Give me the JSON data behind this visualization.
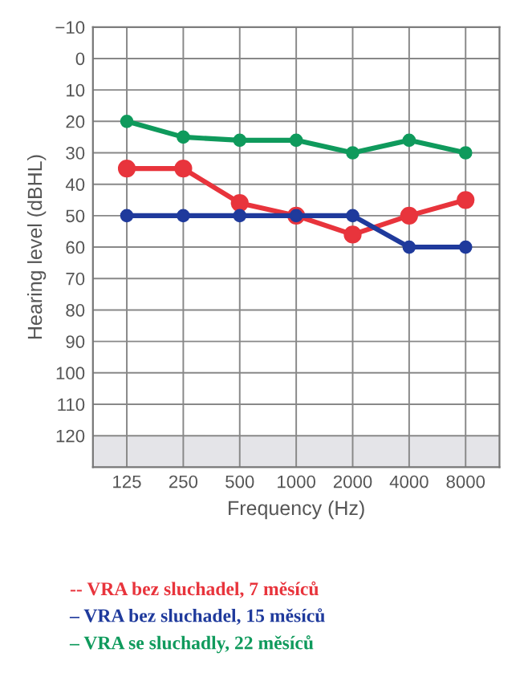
{
  "chart_data": {
    "type": "line",
    "xlabel": "Frequency (Hz)",
    "ylabel": "Hearing level (dBHL)",
    "categories": [
      "125",
      "250",
      "500",
      "1000",
      "2000",
      "4000",
      "8000"
    ],
    "series": [
      {
        "name": "-- VRA bez sluchadel, 7 měsíců",
        "color": "#e8343c",
        "values": [
          35,
          35,
          46,
          50,
          56,
          50,
          45
        ]
      },
      {
        "name": "– VRA bez sluchadel, 15 měsíců",
        "color": "#1f3a9c",
        "values": [
          50,
          50,
          50,
          50,
          50,
          60,
          60
        ]
      },
      {
        "name": "– VRA se sluchadly, 22 měsíců",
        "color": "#0f9a5c",
        "values": [
          20,
          25,
          26,
          26,
          30,
          26,
          30
        ]
      }
    ],
    "ylim": [
      130,
      -10
    ],
    "yticks": [
      {
        "value": -10,
        "label": "−10"
      },
      0,
      10,
      20,
      30,
      40,
      50,
      60,
      70,
      80,
      90,
      100,
      110,
      120
    ],
    "bands": [
      {
        "axis": "y",
        "from": 120,
        "to": 130,
        "color": "#e4e4e8"
      }
    ],
    "grid": true,
    "legend": "bottom",
    "marker": "circle",
    "line_style": "solid"
  }
}
